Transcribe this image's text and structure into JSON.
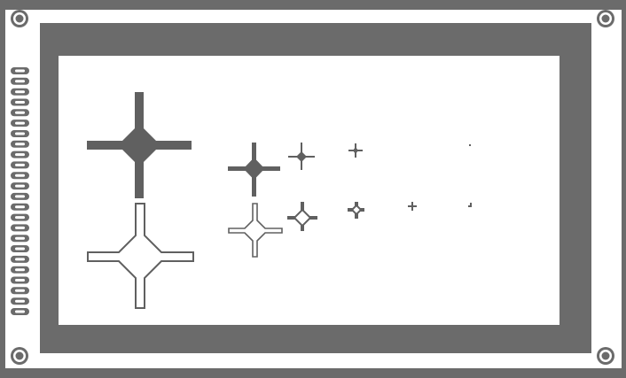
{
  "colors": {
    "board": "#6b6b6b",
    "background": "#ffffff",
    "pixel": "#606060"
  },
  "board": {
    "mounting_holes": 4,
    "pin_header_pins": 24
  },
  "display": {
    "rows": [
      {
        "style": "filled",
        "sizes": [
          "xxl",
          "l",
          "m",
          "s",
          "xs",
          "xxs"
        ]
      },
      {
        "style": "outline",
        "sizes": [
          "xxl",
          "l",
          "m",
          "s",
          "xs",
          "xxs"
        ]
      }
    ],
    "icons": [
      {
        "name": "filled-cross-xxl",
        "style": "filled"
      },
      {
        "name": "filled-cross-l",
        "style": "filled"
      },
      {
        "name": "filled-cross-m",
        "style": "filled"
      },
      {
        "name": "filled-cross-s",
        "style": "filled"
      },
      {
        "name": "filled-cross-xs",
        "style": "filled"
      },
      {
        "name": "outline-cross-xxl",
        "style": "outline"
      },
      {
        "name": "outline-cross-l",
        "style": "outline"
      },
      {
        "name": "outline-cross-m",
        "style": "outline"
      },
      {
        "name": "outline-cross-s",
        "style": "outline"
      },
      {
        "name": "outline-cross-xs",
        "style": "outline"
      },
      {
        "name": "pixel-dot-top",
        "style": "filled"
      },
      {
        "name": "pixel-dot-bottom",
        "style": "filled"
      }
    ]
  }
}
